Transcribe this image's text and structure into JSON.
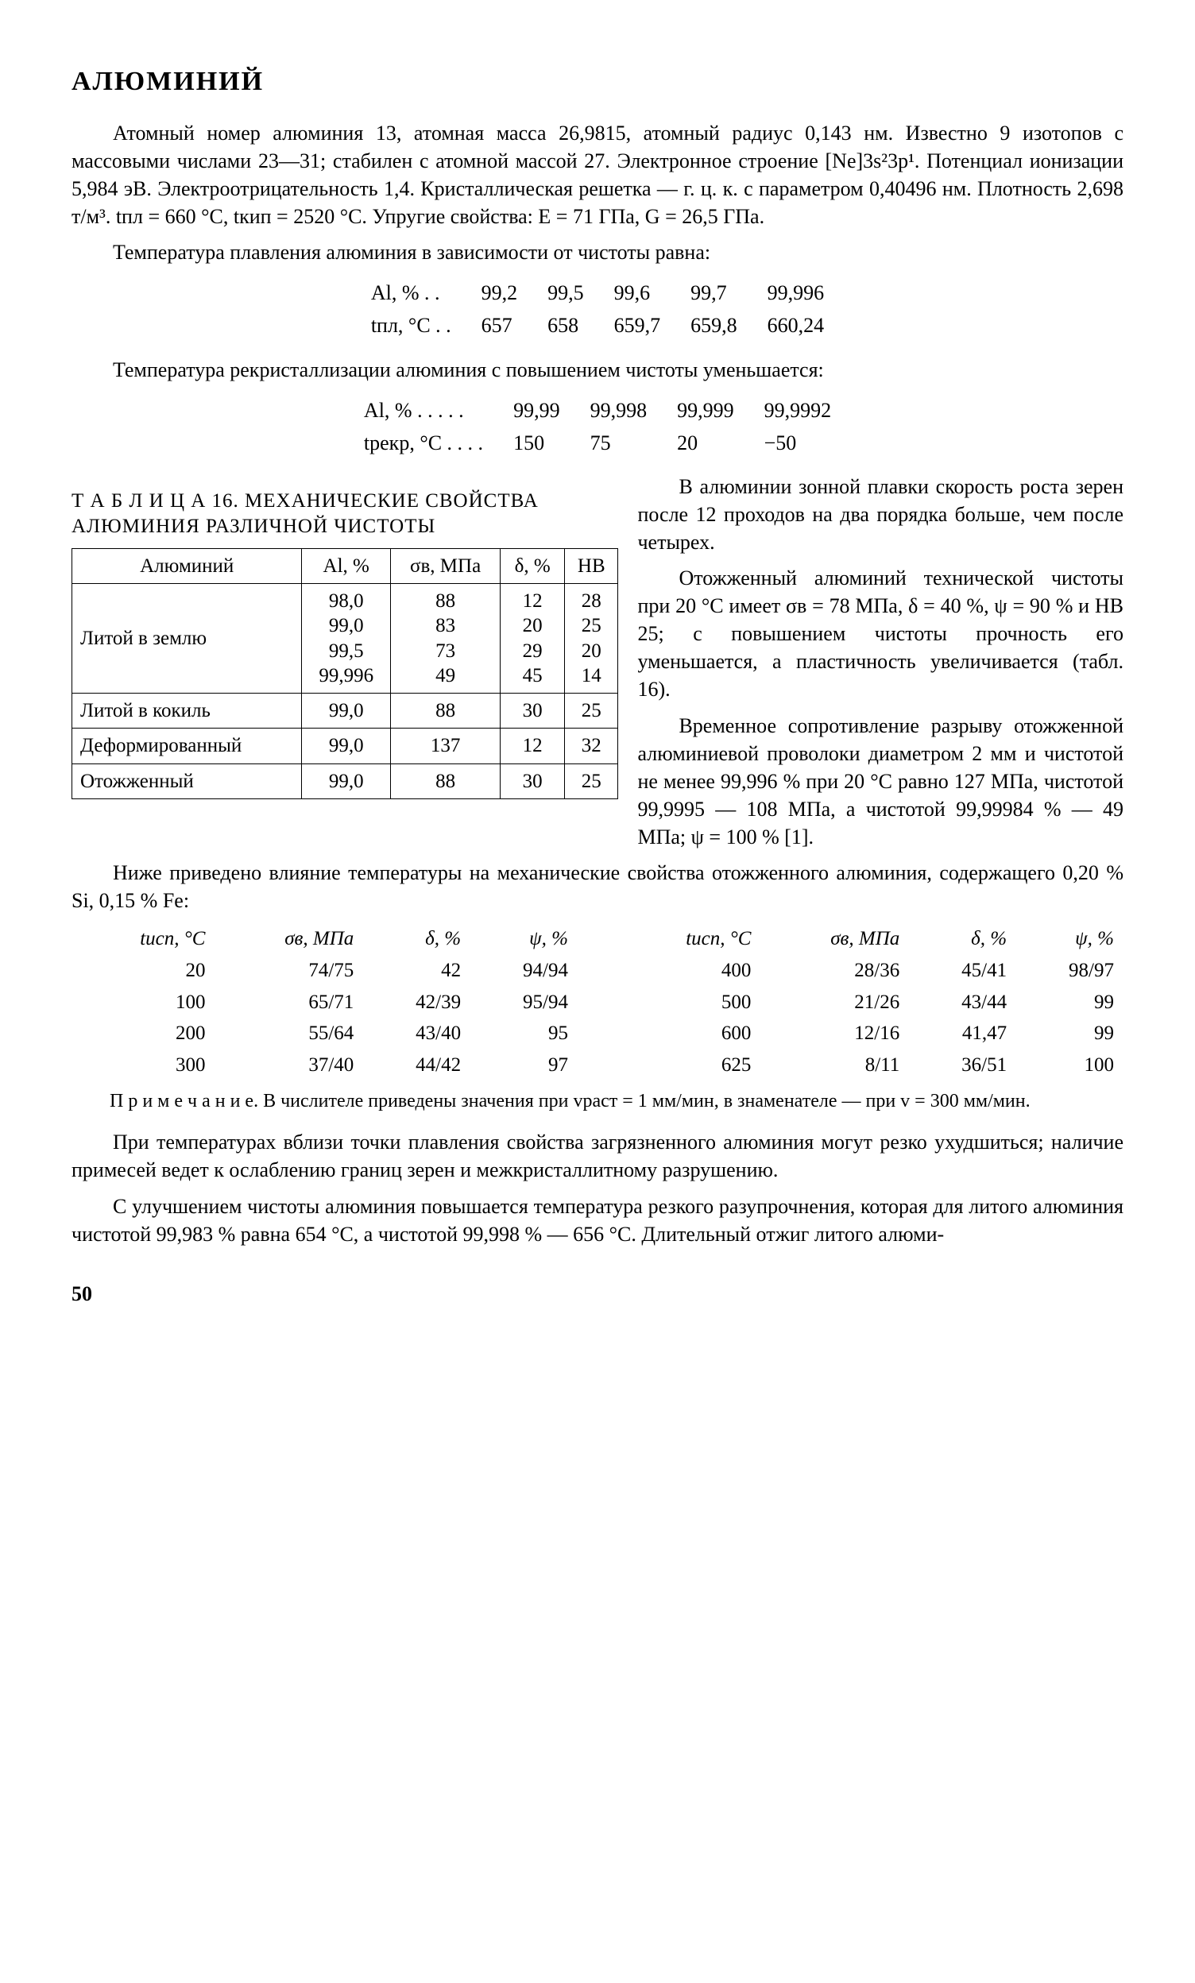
{
  "title": "АЛЮМИНИЙ",
  "para1": "Атомный номер алюминия 13, атомная масса 26,9815, атомный радиус 0,143 нм. Известно 9 изотопов с массовыми числами 23—31; стабилен с атомной массой 27. Электронное строение [Ne]3s²3p¹. Потенциал ионизации 5,984 эВ. Электроотрицательность 1,4. Кристаллическая решетка — г. ц. к. с параметром 0,40496 нм. Плотность 2,698 т/м³. tпл = 660 °C, tкип = 2520 °C. Упругие свойства: E = 71 ГПа, G = 26,5 ГПа.",
  "para2": "Температура плавления алюминия в зависимости от чистоты равна:",
  "meltTable": {
    "row1_label": "Al, % . .",
    "row2_label": "tпл, °C . .",
    "cols": [
      "99,2",
      "99,5",
      "99,6",
      "99,7",
      "99,996"
    ],
    "vals": [
      "657",
      "658",
      "659,7",
      "659,8",
      "660,24"
    ]
  },
  "para3": "Температура рекристаллизации алюминия с повышением чистоты уменьшается:",
  "recrTable": {
    "row1_label": "Al, % . . . . .",
    "row2_label": "tрекр, °C . . . .",
    "cols": [
      "99,99",
      "99,998",
      "99,999",
      "99,9992"
    ],
    "vals": [
      "150",
      "75",
      "20",
      "−50"
    ]
  },
  "table16_title": "Т А Б Л И Ц А 16. МЕХАНИЧЕСКИЕ СВОЙСТВА АЛЮМИНИЯ РАЗЛИЧНОЙ ЧИСТОТЫ",
  "table16": {
    "headers": [
      "Алюминий",
      "Al, %",
      "σв, МПа",
      "δ, %",
      "HB"
    ],
    "rows": [
      {
        "name": "Литой в землю",
        "al": [
          "98,0",
          "99,0",
          "99,5",
          "99,996"
        ],
        "s": [
          "88",
          "83",
          "73",
          "49"
        ],
        "d": [
          "12",
          "20",
          "29",
          "45"
        ],
        "hb": [
          "28",
          "25",
          "20",
          "14"
        ]
      },
      {
        "name": "Литой в кокиль",
        "al": [
          "99,0"
        ],
        "s": [
          "88"
        ],
        "d": [
          "30"
        ],
        "hb": [
          "25"
        ]
      },
      {
        "name": "Деформиро­ванный",
        "al": [
          "99,0"
        ],
        "s": [
          "137"
        ],
        "d": [
          "12"
        ],
        "hb": [
          "32"
        ]
      },
      {
        "name": "Отожженный",
        "al": [
          "99,0"
        ],
        "s": [
          "88"
        ],
        "d": [
          "30"
        ],
        "hb": [
          "25"
        ]
      }
    ]
  },
  "right1": "В алюминии зонной плавки скорость роста зерен после 12 проходов на два порядка больше, чем после четырех.",
  "right2": "Отожженный алюминий технической чистоты при 20 °C имеет σв = 78 МПа, δ = 40 %, ψ = 90 % и HB 25; с повышением чистоты прочность его уменьшается, а пластичность увеличивается (табл. 16).",
  "right3": "Временное сопротивление разрыву отожженной алюминиевой проволоки диаметром 2 мм и чистотой не менее 99,996 % при 20 °C равно 127 МПа, чистотой 99,9995 — 108 МПа, а чистотой 99,99984 % — 49 МПа; ψ = 100 % [1].",
  "para4": "Ниже приведено влияние температуры на механические свойства отожженного алюминия, содержащего 0,20 % Si, 0,15 % Fe:",
  "tempTable": {
    "headers_left": [
      "tисп, °C",
      "σв, МПа",
      "δ, %",
      "ψ, %"
    ],
    "headers_right": [
      "tисп, °C",
      "σв, МПа",
      "δ, %",
      "ψ, %"
    ],
    "rows_left": [
      [
        "20",
        "74/75",
        "42",
        "94/94"
      ],
      [
        "100",
        "65/71",
        "42/39",
        "95/94"
      ],
      [
        "200",
        "55/64",
        "43/40",
        "95"
      ],
      [
        "300",
        "37/40",
        "44/42",
        "97"
      ]
    ],
    "rows_right": [
      [
        "400",
        "28/36",
        "45/41",
        "98/97"
      ],
      [
        "500",
        "21/26",
        "43/44",
        "99"
      ],
      [
        "600",
        "12/16",
        "41,47",
        "99"
      ],
      [
        "625",
        "8/11",
        "36/51",
        "100"
      ]
    ]
  },
  "note": "П р и м е ч а н и е. В числителе приведены значения при vраст = 1 мм/мин, в знаменателе — при v = 300 мм/мин.",
  "para5": "При температурах вблизи точки плавления свойства загрязненного алюминия могут резко ухудшиться; наличие примесей ведет к ослаблению границ зерен и межкристаллитному разрушению.",
  "para6": "С улучшением чистоты алюминия повышается температура резкого разупрочнения, которая для литого алюминия чистотой 99,983 % равна 654 °C, а чистотой 99,998 % — 656 °C. Длительный отжиг литого алюми-",
  "pageNum": "50"
}
